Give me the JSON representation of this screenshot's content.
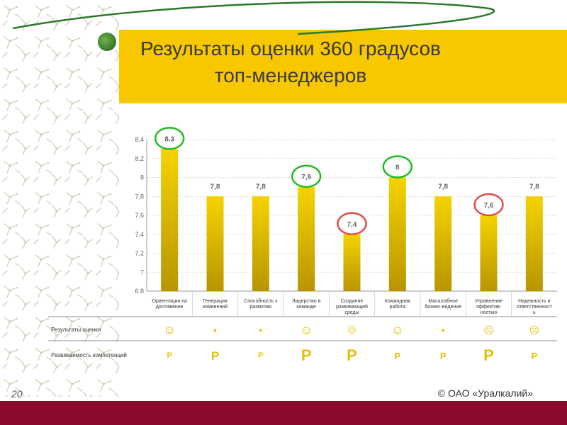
{
  "slide": {
    "title_line1": "Результаты оценки 360 градусов",
    "title_line2": "топ-менеджеров",
    "page_number": "20",
    "copyright": "© ОАО «Уралкалий»"
  },
  "colors": {
    "banner": "#f7c700",
    "bar_top": "#f5d300",
    "bar_bottom": "#b89500",
    "good_circle": "#22bb22",
    "bad_circle": "#e24a4a",
    "footer": "#8a0a2c",
    "marks": "#e6c000"
  },
  "chart_data": {
    "type": "bar",
    "categories": [
      [
        "Ориентация на",
        "достижение"
      ],
      [
        "Генерация",
        "изменений"
      ],
      [
        "Способность к",
        "развитию"
      ],
      [
        "Лидерство в",
        "команде"
      ],
      [
        "Создание",
        "развивающей",
        "среды"
      ],
      [
        "Командная",
        "работа"
      ],
      [
        "Масштабное",
        "бизнес-видение"
      ],
      [
        "Управление",
        "эффектив-",
        "ностью"
      ],
      [
        "Надежность и",
        "ответственност",
        "ь"
      ]
    ],
    "values": [
      8.3,
      7.8,
      7.8,
      7.9,
      7.4,
      8,
      7.8,
      7.6,
      7.8
    ],
    "value_labels": [
      "8.3",
      "7,8",
      "7,8",
      "7,9",
      "7,4",
      "8",
      "7,8",
      "7,6",
      "7,8"
    ],
    "highlight": [
      "good",
      "none",
      "none",
      "good",
      "bad",
      "good",
      "none",
      "bad",
      "none"
    ],
    "yticks": [
      "6.8",
      "7",
      "7,2",
      "7,4",
      "7,6",
      "7,8",
      "8",
      "8,2",
      "8,4"
    ],
    "ylim": [
      6.8,
      8.4
    ],
    "grid": "horizontal",
    "table_rows": [
      {
        "label": "Результаты оценки",
        "cells": [
          {
            "kind": "smile",
            "text": "☺",
            "size": 18
          },
          {
            "kind": "dot",
            "text": "●",
            "size": 9
          },
          {
            "kind": "dot",
            "text": "●",
            "size": 9
          },
          {
            "kind": "smile",
            "text": "☺",
            "size": 18
          },
          {
            "kind": "frown",
            "text": "☹",
            "size": 12
          },
          {
            "kind": "smile",
            "text": "☺",
            "size": 18
          },
          {
            "kind": "dot",
            "text": "●",
            "size": 9
          },
          {
            "kind": "frown",
            "text": "☹",
            "size": 14
          },
          {
            "kind": "frown",
            "text": "☹",
            "size": 14
          }
        ]
      },
      {
        "label": "Развиваемость компетенций",
        "cells": [
          {
            "text": "Р",
            "size": 11
          },
          {
            "text": "Р",
            "size": 17
          },
          {
            "text": "Р",
            "size": 11
          },
          {
            "text": "Р",
            "size": 22
          },
          {
            "text": "Р",
            "size": 22
          },
          {
            "text": "Р",
            "size": 13
          },
          {
            "text": "Р",
            "size": 13
          },
          {
            "text": "Р",
            "size": 22
          },
          {
            "text": "Р",
            "size": 13
          }
        ]
      }
    ]
  }
}
